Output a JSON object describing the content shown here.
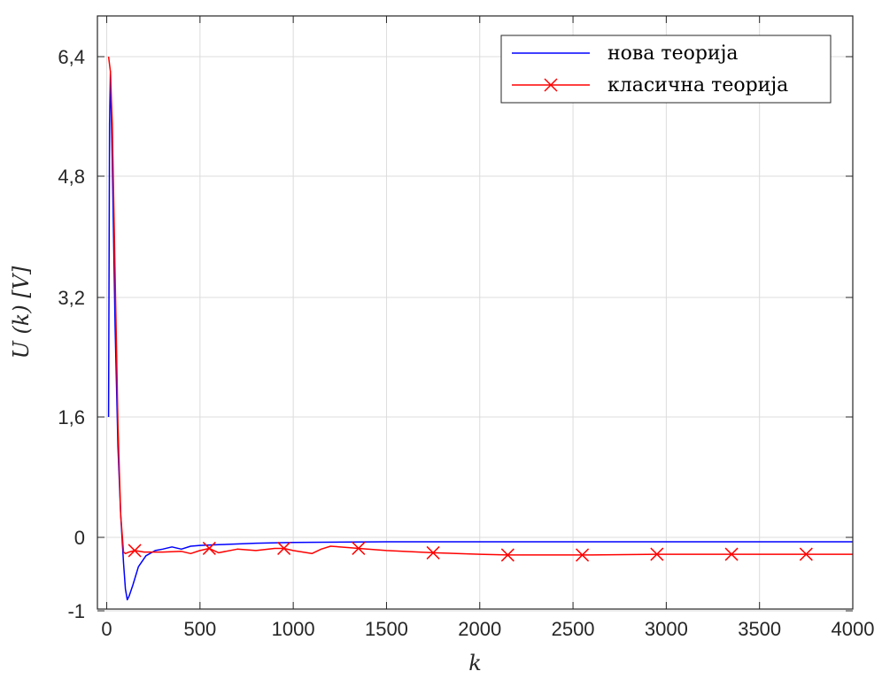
{
  "chart_data": {
    "type": "line",
    "xlabel": "k",
    "ylabel": "U (k) [V]",
    "xlim": [
      -50,
      4000
    ],
    "ylim": [
      -1,
      7
    ],
    "x_ticks": [
      0,
      500,
      1000,
      1500,
      2000,
      2500,
      3000,
      3500,
      4000
    ],
    "x_tick_labels": [
      "0",
      "500",
      "1000",
      "1500",
      "2000",
      "2500",
      "3000",
      "3500",
      "4000"
    ],
    "y_ticks": [
      -1,
      0,
      1.6,
      3.2,
      4.8,
      6.4
    ],
    "y_tick_labels": [
      "-1",
      "0",
      "1,6",
      "3,2",
      "4,8",
      "6,4"
    ],
    "y_scale_note": "tick labels are non-uniform; plotted on a uniform grid as drawn",
    "grid": true,
    "legend_position": "top-right",
    "colors": {
      "nova": "#0000ff",
      "klasicna": "#ff0000",
      "grid": "#dcdcdc",
      "axes": "#262626"
    },
    "series": [
      {
        "name": "нова теорија",
        "color": "#0000ff",
        "marker": "none",
        "points": [
          [
            10,
            1.6
          ],
          [
            15,
            5.5
          ],
          [
            20,
            6.2
          ],
          [
            30,
            5.0
          ],
          [
            45,
            2.8
          ],
          [
            60,
            1.2
          ],
          [
            75,
            0.3
          ],
          [
            90,
            -0.35
          ],
          [
            100,
            -0.7
          ],
          [
            110,
            -0.85
          ],
          [
            120,
            -0.8
          ],
          [
            140,
            -0.65
          ],
          [
            170,
            -0.4
          ],
          [
            210,
            -0.25
          ],
          [
            260,
            -0.18
          ],
          [
            300,
            -0.16
          ],
          [
            350,
            -0.13
          ],
          [
            400,
            -0.16
          ],
          [
            450,
            -0.12
          ],
          [
            500,
            -0.11
          ],
          [
            600,
            -0.1
          ],
          [
            800,
            -0.08
          ],
          [
            1000,
            -0.07
          ],
          [
            1500,
            -0.06
          ],
          [
            2000,
            -0.06
          ],
          [
            2500,
            -0.06
          ],
          [
            3000,
            -0.06
          ],
          [
            3500,
            -0.06
          ],
          [
            4000,
            -0.06
          ]
        ]
      },
      {
        "name": "класична теорија",
        "color": "#ff0000",
        "marker": "x",
        "marker_x": [
          150,
          550,
          950,
          1350,
          1750,
          2150,
          2550,
          2950,
          3350,
          3750
        ],
        "points": [
          [
            10,
            6.4
          ],
          [
            20,
            6.2
          ],
          [
            30,
            5.5
          ],
          [
            45,
            3.5
          ],
          [
            60,
            1.5
          ],
          [
            75,
            0.3
          ],
          [
            90,
            -0.2
          ],
          [
            100,
            -0.22
          ],
          [
            120,
            -0.2
          ],
          [
            150,
            -0.18
          ],
          [
            200,
            -0.2
          ],
          [
            300,
            -0.2
          ],
          [
            400,
            -0.19
          ],
          [
            450,
            -0.22
          ],
          [
            500,
            -0.18
          ],
          [
            550,
            -0.15
          ],
          [
            600,
            -0.21
          ],
          [
            700,
            -0.16
          ],
          [
            800,
            -0.18
          ],
          [
            900,
            -0.15
          ],
          [
            950,
            -0.15
          ],
          [
            1000,
            -0.18
          ],
          [
            1100,
            -0.22
          ],
          [
            1150,
            -0.16
          ],
          [
            1200,
            -0.12
          ],
          [
            1300,
            -0.14
          ],
          [
            1350,
            -0.15
          ],
          [
            1500,
            -0.18
          ],
          [
            1750,
            -0.21
          ],
          [
            2000,
            -0.23
          ],
          [
            2150,
            -0.24
          ],
          [
            2550,
            -0.24
          ],
          [
            2600,
            -0.24
          ],
          [
            2950,
            -0.23
          ],
          [
            3350,
            -0.23
          ],
          [
            3750,
            -0.23
          ],
          [
            4000,
            -0.23
          ]
        ]
      }
    ]
  }
}
